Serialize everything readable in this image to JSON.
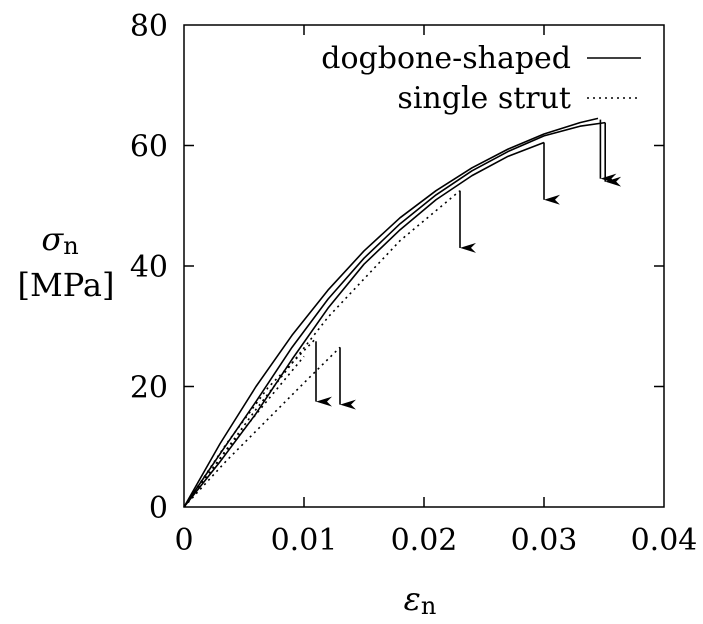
{
  "chart_data": {
    "type": "line",
    "title": "",
    "xlabel": "ε",
    "xlabel_sub": "n",
    "ylabel": "σ",
    "ylabel_sub": "n",
    "ylabel_unit": "[MPa]",
    "xlim": [
      0,
      0.04
    ],
    "ylim": [
      0,
      80
    ],
    "xticks": [
      0,
      0.01,
      0.02,
      0.03,
      0.04
    ],
    "yticks": [
      0,
      20,
      40,
      60,
      80
    ],
    "xtick_labels": [
      "0",
      "0.01",
      "0.02",
      "0.03",
      "0.04"
    ],
    "ytick_labels": [
      "0",
      "20",
      "40",
      "60",
      "80"
    ],
    "grid": false,
    "legend_position": "top-right",
    "legend": [
      {
        "label": "dogbone-shaped",
        "style": "solid"
      },
      {
        "label": "single strut",
        "style": "dotted"
      }
    ],
    "series": [
      {
        "group": "dogbone-shaped",
        "style": "solid",
        "x": [
          0,
          0.003,
          0.006,
          0.009,
          0.012,
          0.015,
          0.018,
          0.021,
          0.024,
          0.027,
          0.03,
          0.033,
          0.0345
        ],
        "y": [
          0,
          10.5,
          20,
          28.5,
          36,
          42.5,
          48,
          52.5,
          56.3,
          59.4,
          61.9,
          63.8,
          64.5
        ]
      },
      {
        "group": "dogbone-shaped",
        "style": "solid",
        "x": [
          0,
          0.003,
          0.006,
          0.009,
          0.012,
          0.015,
          0.018,
          0.021,
          0.024,
          0.027,
          0.03,
          0.033,
          0.0351
        ],
        "y": [
          0,
          8.8,
          17.5,
          26.5,
          34.5,
          41.3,
          47,
          51.8,
          55.8,
          59,
          61.6,
          63.2,
          63.8
        ]
      },
      {
        "group": "dogbone-shaped",
        "style": "solid",
        "x": [
          0,
          0.003,
          0.006,
          0.009,
          0.012,
          0.015,
          0.018,
          0.021,
          0.024,
          0.027,
          0.03
        ],
        "y": [
          0,
          7.5,
          15.5,
          24.5,
          33,
          40.3,
          46,
          51,
          55,
          58.2,
          60.5
        ]
      },
      {
        "group": "single strut",
        "style": "dotted",
        "x": [
          0,
          0.0035,
          0.007,
          0.011
        ],
        "y": [
          0,
          10.4,
          19.8,
          28
        ]
      },
      {
        "group": "single strut",
        "style": "dotted",
        "x": [
          0,
          0.0035,
          0.007,
          0.01
        ],
        "y": [
          0,
          9.3,
          17.8,
          25
        ]
      },
      {
        "group": "single strut",
        "style": "dotted",
        "x": [
          0,
          0.0035,
          0.007,
          0.01,
          0.013
        ],
        "y": [
          0,
          7.6,
          14.6,
          20.6,
          26.5
        ]
      },
      {
        "group": "single strut",
        "style": "dotted",
        "x": [
          0,
          0.006,
          0.012,
          0.018,
          0.023
        ],
        "y": [
          0,
          16.2,
          31.5,
          44.2,
          52.5
        ]
      }
    ],
    "failure_arrows": [
      {
        "x": 0.011,
        "y_start": 27.5,
        "y_end": 17.5
      },
      {
        "x": 0.013,
        "y_start": 26.5,
        "y_end": 17.0
      },
      {
        "x": 0.023,
        "y_start": 52.5,
        "y_end": 43.0
      },
      {
        "x": 0.03,
        "y_start": 60.5,
        "y_end": 51.0
      },
      {
        "x": 0.0347,
        "y_start": 64.3,
        "y_end": 54.5
      },
      {
        "x": 0.0351,
        "y_start": 63.8,
        "y_end": 54.0
      }
    ]
  }
}
